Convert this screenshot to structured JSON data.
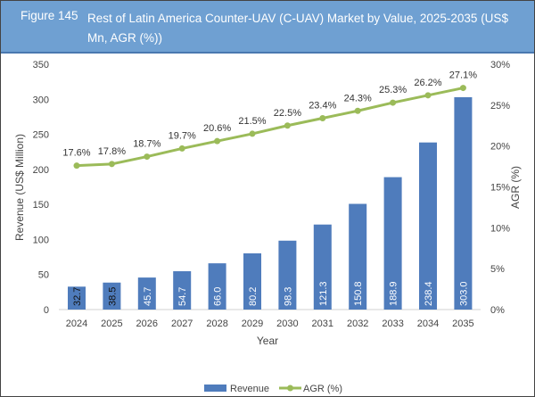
{
  "header": {
    "figure_label": "Figure 145",
    "title": "Rest of Latin America Counter-UAV (C-UAV) Market by Value, 2025-2035 (US$ Mn, AGR (%))"
  },
  "chart_data": {
    "type": "bar+line",
    "categories": [
      "2024",
      "2025",
      "2026",
      "2027",
      "2028",
      "2029",
      "2030",
      "2031",
      "2032",
      "2033",
      "2034",
      "2035"
    ],
    "series": [
      {
        "name": "Revenue",
        "type": "bar",
        "axis": "left",
        "color": "#4f7cbc",
        "values": [
          32.7,
          38.5,
          45.7,
          54.7,
          66.0,
          80.2,
          98.3,
          121.3,
          150.8,
          188.9,
          238.4,
          303.0
        ],
        "labels": [
          "32.7",
          "38.5",
          "45.7",
          "54.7",
          "66.0",
          "80.2",
          "98.3",
          "121.3",
          "150.8",
          "188.9",
          "238.4",
          "303.0"
        ]
      },
      {
        "name": "AGR (%)",
        "type": "line",
        "axis": "right",
        "color": "#9bbb59",
        "values": [
          17.6,
          17.8,
          18.7,
          19.7,
          20.6,
          21.5,
          22.5,
          23.4,
          24.3,
          25.3,
          26.2,
          27.1
        ],
        "labels": [
          "17.6%",
          "17.8%",
          "18.7%",
          "19.7%",
          "20.6%",
          "21.5%",
          "22.5%",
          "23.4%",
          "24.3%",
          "25.3%",
          "26.2%",
          "27.1%"
        ]
      }
    ],
    "xlabel": "Year",
    "ylabel": "Revenue (US$ Million)",
    "y2label": "AGR (%)",
    "ylim": [
      0,
      350
    ],
    "y2lim": [
      0,
      30
    ],
    "yticks": [
      "0",
      "50",
      "100",
      "150",
      "200",
      "250",
      "300",
      "350"
    ],
    "y2ticks": [
      "0%",
      "5%",
      "10%",
      "15%",
      "20%",
      "25%",
      "30%"
    ],
    "grid": false,
    "legend": "bottom"
  }
}
